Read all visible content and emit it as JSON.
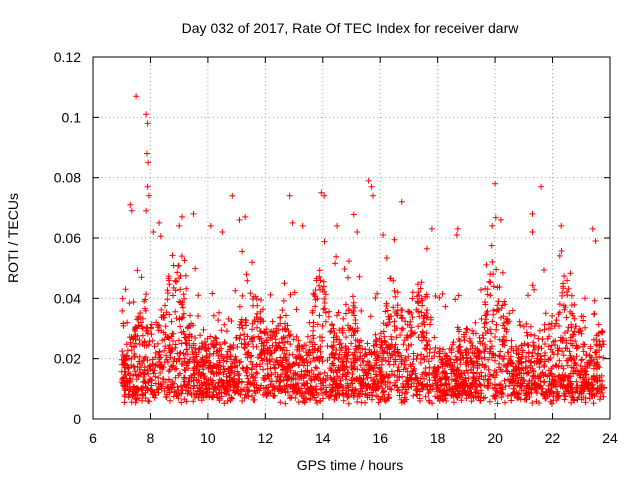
{
  "chart_data": {
    "type": "scatter",
    "title": "Day 032 of 2017, Rate Of TEC Index for receiver darw",
    "xlabel": "GPS time / hours",
    "ylabel": "ROTI / TECUs",
    "xlim": [
      6,
      24
    ],
    "ylim": [
      0,
      0.12
    ],
    "xticks": [
      6,
      8,
      10,
      12,
      14,
      16,
      18,
      20,
      22,
      24
    ],
    "xtick_labels": [
      "6",
      "8",
      "10",
      "12",
      "14",
      "16",
      "18",
      "20",
      "22",
      "24"
    ],
    "yticks": [
      0,
      0.02,
      0.04,
      0.06,
      0.08,
      0.1,
      0.12
    ],
    "ytick_labels": [
      "0",
      "0.02",
      "0.04",
      "0.06",
      "0.08",
      "0.1",
      "0.12"
    ],
    "grid": true,
    "marker": "+",
    "series": [
      {
        "name": "ROTI",
        "color": "#ff0000",
        "x_range": [
          7.0,
          23.8
        ],
        "points": [
          [
            7.5,
            0.107
          ],
          [
            7.85,
            0.101
          ],
          [
            7.9,
            0.098
          ],
          [
            7.88,
            0.088
          ],
          [
            7.92,
            0.085
          ],
          [
            7.9,
            0.077
          ],
          [
            7.95,
            0.074
          ],
          [
            7.3,
            0.071
          ],
          [
            7.35,
            0.069
          ],
          [
            7.85,
            0.069
          ],
          [
            10.85,
            0.074
          ],
          [
            12.85,
            0.074
          ],
          [
            13.95,
            0.075
          ],
          [
            14.05,
            0.074
          ],
          [
            15.6,
            0.079
          ],
          [
            15.7,
            0.077
          ],
          [
            15.75,
            0.074
          ],
          [
            16.75,
            0.072
          ],
          [
            20.0,
            0.078
          ],
          [
            21.6,
            0.077
          ],
          [
            20.2,
            0.066
          ],
          [
            21.3,
            0.068
          ],
          [
            9.1,
            0.067
          ],
          [
            9.5,
            0.068
          ],
          [
            9.0,
            0.064
          ],
          [
            11.1,
            0.066
          ],
          [
            11.3,
            0.067
          ],
          [
            12.95,
            0.065
          ],
          [
            13.3,
            0.064
          ],
          [
            14.5,
            0.064
          ],
          [
            15.2,
            0.062
          ],
          [
            16.1,
            0.061
          ],
          [
            17.8,
            0.063
          ],
          [
            18.7,
            0.063
          ],
          [
            19.9,
            0.064
          ],
          [
            21.3,
            0.062
          ],
          [
            22.3,
            0.064
          ],
          [
            23.4,
            0.063
          ],
          [
            23.5,
            0.059
          ],
          [
            8.1,
            0.062
          ],
          [
            8.3,
            0.065
          ],
          [
            10.1,
            0.064
          ],
          [
            10.5,
            0.062
          ]
        ],
        "density_note": "Dense cloud of points between x=7.0 and x=23.8, most ROTI values between 0.003 and 0.04"
      }
    ]
  }
}
